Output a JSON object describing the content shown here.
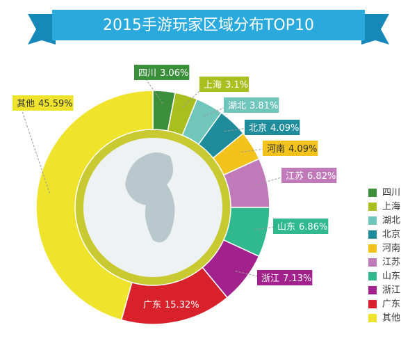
{
  "chart_data": {
    "type": "pie",
    "title": "2015手游玩家区域分布TOP10",
    "categories": [
      "四川",
      "上海",
      "湖北",
      "北京",
      "河南",
      "江苏",
      "山东",
      "浙江",
      "广东",
      "其他"
    ],
    "values": [
      3.06,
      3.1,
      3.81,
      4.09,
      4.09,
      6.82,
      6.86,
      7.13,
      15.32,
      45.59
    ],
    "value_labels": [
      "3.06%",
      "3.1%",
      "3.81%",
      "4.09%",
      "4.09%",
      "6.82%",
      "6.86%",
      "7.13%",
      "15.32%",
      "45.59%"
    ],
    "colors": [
      "#3b8f3b",
      "#a9bf1f",
      "#71c6bb",
      "#1f8c9c",
      "#f2c31c",
      "#c07ab9",
      "#2fb98d",
      "#a3218d",
      "#d8212b",
      "#efe42b"
    ],
    "legend": "bottom-right"
  }
}
